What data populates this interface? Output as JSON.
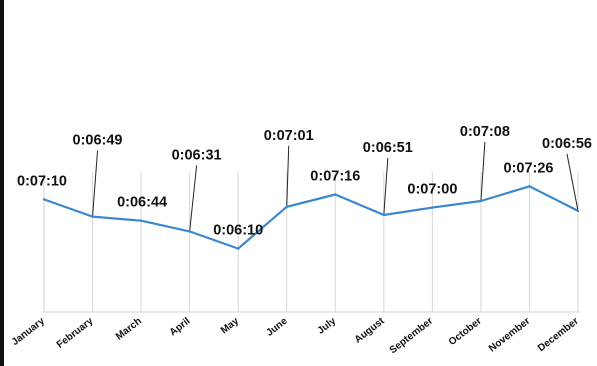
{
  "chart_data": {
    "type": "line",
    "title": "",
    "xlabel": "",
    "ylabel": "",
    "categories": [
      "January",
      "February",
      "March",
      "April",
      "May",
      "June",
      "July",
      "August",
      "September",
      "October",
      "November",
      "December"
    ],
    "series": [
      {
        "values": [
          "0:07:10",
          "0:06:49",
          "0:06:44",
          "0:06:31",
          "0:06:10",
          "0:07:01",
          "0:07:16",
          "0:06:51",
          "0:07:00",
          "0:07:08",
          "0:07:26",
          "0:06:56"
        ],
        "values_seconds": [
          430,
          409,
          404,
          391,
          370,
          421,
          436,
          411,
          420,
          428,
          446,
          416
        ],
        "color": "#3b87cc"
      }
    ],
    "grid": "vertical",
    "legend": "none"
  }
}
